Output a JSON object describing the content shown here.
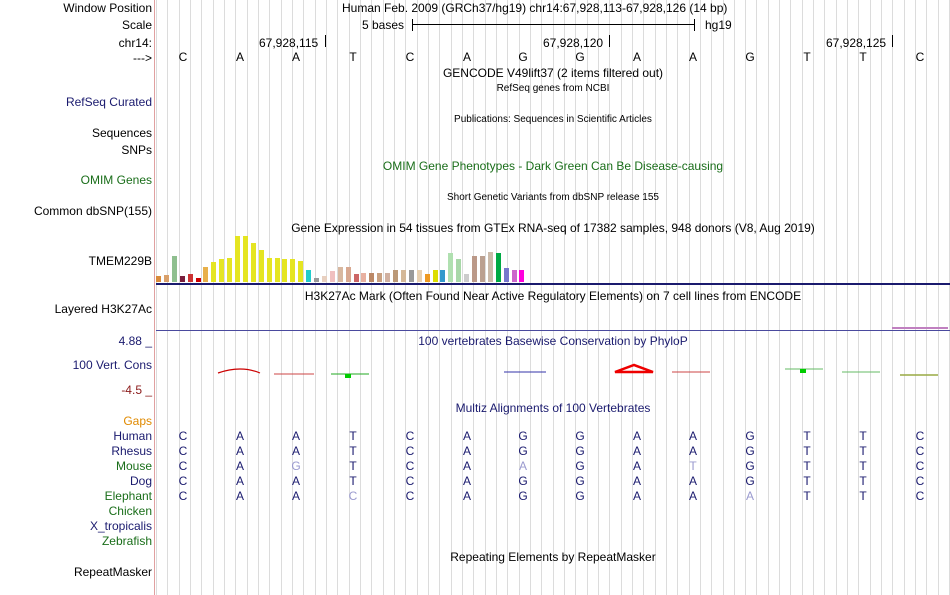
{
  "header": {
    "window_position_label": "Window Position",
    "window_position_value": "Human Feb. 2009 (GRCh37/hg19)   chr14:67,928,113-67,928,126 (14 bp)",
    "scale_label": "Scale",
    "scale_value": "5 bases",
    "scale_assembly": "hg19",
    "chrom_label": "chr14:",
    "strand_label": "--->",
    "positions": [
      "67,928,115",
      "67,928,120",
      "67,928,125"
    ]
  },
  "ref_sequence": [
    "C",
    "A",
    "A",
    "T",
    "C",
    "A",
    "G",
    "G",
    "A",
    "A",
    "G",
    "T",
    "T",
    "C"
  ],
  "tracks": {
    "gencode_title": "GENCODE V49lift37 (2 items filtered out)",
    "refseq_sub": "RefSeq genes from NCBI",
    "refseq_label": "RefSeq Curated",
    "publications_sub": "Publications: Sequences in Scientific Articles",
    "sequences_label": "Sequences",
    "snps_label": "SNPs",
    "omim_title": "OMIM Gene Phenotypes - Dark Green Can Be Disease-causing",
    "omim_label": "OMIM Genes",
    "dbsnp_sub": "Short Genetic Variants from dbSNP release 155",
    "dbsnp_label": "Common dbSNP(155)",
    "gtex_title": "Gene Expression in 54 tissues from GTEx RNA-seq of 17382 samples, 948 donors (V8, Aug 2019)",
    "gtex_label": "TMEM229B",
    "h3k27_title": "H3K27Ac Mark (Often Found Near Active Regulatory Elements) on 7 cell lines from ENCODE",
    "h3k27_label": "Layered H3K27Ac",
    "phylop_title": "100 vertebrates Basewise Conservation by PhyloP",
    "phylop_max": "4.88 _",
    "phylop_label": "100 Vert. Cons",
    "phylop_min": "-4.5 _",
    "gaps_label": "Gaps",
    "multiz_title": "Multiz Alignments of 100 Vertebrates",
    "repeat_title": "Repeating Elements by RepeatMasker",
    "repeat_label": "RepeatMasker"
  },
  "gtex_bars": [
    {
      "color": "#d98a3a",
      "value": 0.12
    },
    {
      "color": "#d9a06a",
      "value": 0.16
    },
    {
      "color": "#8fbf8f",
      "value": 0.57
    },
    {
      "color": "#7a1f3d",
      "value": 0.14
    },
    {
      "color": "#cc3333",
      "value": 0.18
    },
    {
      "color": "#cc0000",
      "value": 0.08
    },
    {
      "color": "#e8b04a",
      "value": 0.32
    },
    {
      "color": "#e5e522",
      "value": 0.43
    },
    {
      "color": "#e5e522",
      "value": 0.5
    },
    {
      "color": "#e5e522",
      "value": 0.52
    },
    {
      "color": "#e5e522",
      "value": 1.0
    },
    {
      "color": "#e5e522",
      "value": 1.0
    },
    {
      "color": "#e5e522",
      "value": 0.84
    },
    {
      "color": "#e5e522",
      "value": 0.7
    },
    {
      "color": "#e5e522",
      "value": 0.52
    },
    {
      "color": "#e5e522",
      "value": 0.52
    },
    {
      "color": "#e5e522",
      "value": 0.5
    },
    {
      "color": "#e5e522",
      "value": 0.5
    },
    {
      "color": "#e5e522",
      "value": 0.46
    },
    {
      "color": "#22cccc",
      "value": 0.25
    },
    {
      "color": "#999999",
      "value": 0.08
    },
    {
      "color": "#e8d0c0",
      "value": 0.14
    },
    {
      "color": "#f0c0c0",
      "value": 0.23
    },
    {
      "color": "#d8b8a0",
      "value": 0.32
    },
    {
      "color": "#d8a890",
      "value": 0.32
    },
    {
      "color": "#cc6666",
      "value": 0.18
    },
    {
      "color": "#e8b0a0",
      "value": 0.2
    },
    {
      "color": "#bb8866",
      "value": 0.2
    },
    {
      "color": "#c8a080",
      "value": 0.2
    },
    {
      "color": "#d0b0a0",
      "value": 0.2
    },
    {
      "color": "#bb9977",
      "value": 0.25
    },
    {
      "color": "#d4b898",
      "value": 0.25
    },
    {
      "color": "#999999",
      "value": 0.27
    },
    {
      "color": "#e8d0b0",
      "value": 0.27
    },
    {
      "color": "#ee9922",
      "value": 0.18
    },
    {
      "color": "#dddd00",
      "value": 0.25
    },
    {
      "color": "#3399cc",
      "value": 0.27
    },
    {
      "color": "#b0e0b0",
      "value": 0.64
    },
    {
      "color": "#a8d8a8",
      "value": 0.5
    },
    {
      "color": "#cccccc",
      "value": 0.18
    },
    {
      "color": "#bb9988",
      "value": 0.57
    },
    {
      "color": "#bba090",
      "value": 0.57
    },
    {
      "color": "#ccbbaa",
      "value": 0.66
    },
    {
      "color": "#00aa44",
      "value": 0.64
    },
    {
      "color": "#7777cc",
      "value": 0.3
    },
    {
      "color": "#cc66cc",
      "value": 0.25
    },
    {
      "color": "#ff00dd",
      "value": 0.27
    }
  ],
  "species": [
    {
      "name": "Human",
      "color": "#1a1a6e",
      "seq": [
        "C",
        "A",
        "A",
        "T",
        "C",
        "A",
        "G",
        "G",
        "A",
        "A",
        "G",
        "T",
        "T",
        "C"
      ],
      "light": []
    },
    {
      "name": "Rhesus",
      "color": "#1a1a6e",
      "seq": [
        "C",
        "A",
        "A",
        "T",
        "C",
        "A",
        "G",
        "G",
        "A",
        "A",
        "G",
        "T",
        "T",
        "C"
      ],
      "light": []
    },
    {
      "name": "Mouse",
      "color": "#1a6e1a",
      "seq": [
        "C",
        "A",
        "G",
        "T",
        "C",
        "A",
        "A",
        "G",
        "A",
        "T",
        "G",
        "T",
        "T",
        "C"
      ],
      "light": [
        2,
        6,
        9
      ]
    },
    {
      "name": "Dog",
      "color": "#1a1a6e",
      "seq": [
        "C",
        "A",
        "A",
        "T",
        "C",
        "A",
        "G",
        "G",
        "A",
        "A",
        "G",
        "T",
        "T",
        "C"
      ],
      "light": []
    },
    {
      "name": "Elephant",
      "color": "#1a6e1a",
      "seq": [
        "C",
        "A",
        "A",
        "C",
        "C",
        "A",
        "G",
        "G",
        "A",
        "A",
        "A",
        "T",
        "T",
        "C"
      ],
      "light": [
        3,
        10
      ]
    },
    {
      "name": "Chicken",
      "color": "#1a6e1a",
      "seq": [],
      "light": []
    },
    {
      "name": "X_tropicalis",
      "color": "#1a1a6e",
      "seq": [],
      "light": []
    },
    {
      "name": "Zebrafish",
      "color": "#1a6e1a",
      "seq": [],
      "light": []
    }
  ]
}
